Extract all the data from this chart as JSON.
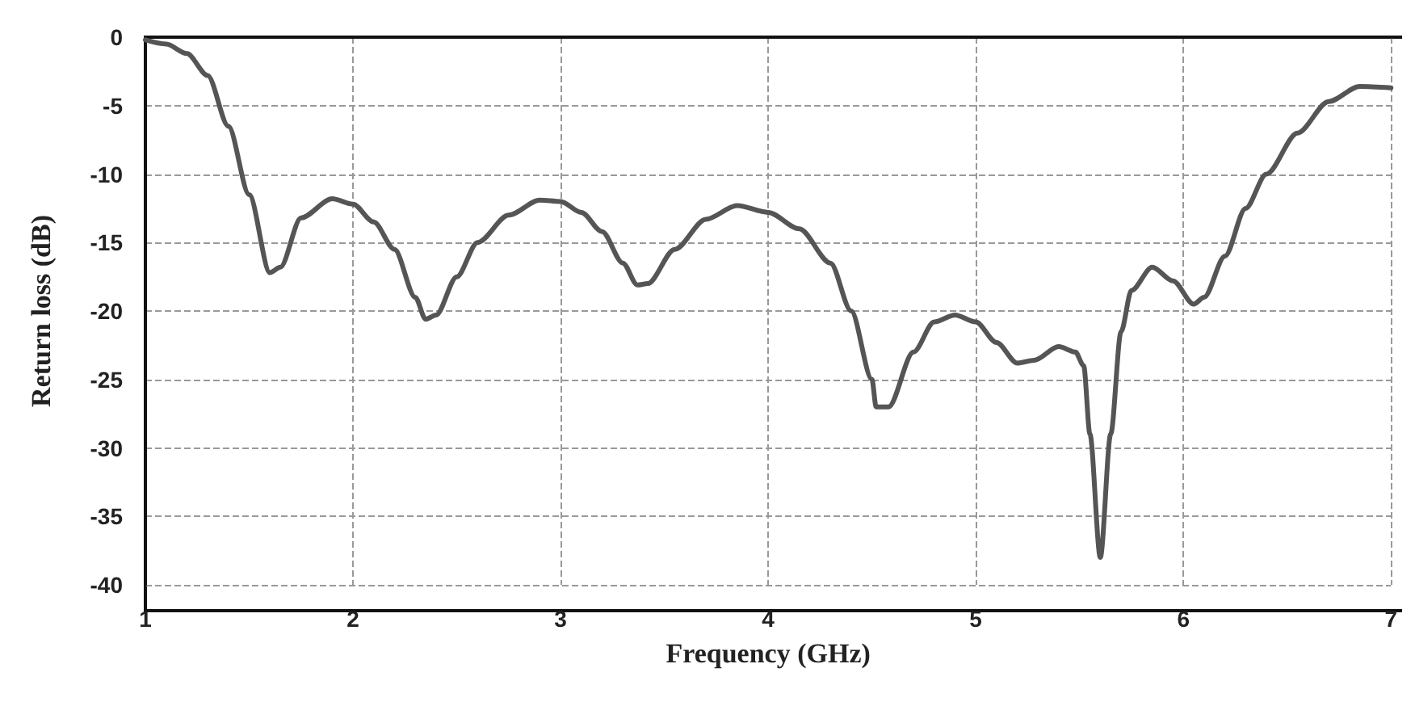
{
  "chart_data": {
    "type": "line",
    "xlabel": "Frequency (GHz)",
    "ylabel": "Return loss (dB)",
    "x": [
      1.0,
      1.1,
      1.2,
      1.3,
      1.4,
      1.5,
      1.6,
      1.65,
      1.75,
      1.9,
      2.0,
      2.1,
      2.2,
      2.3,
      2.35,
      2.4,
      2.5,
      2.6,
      2.75,
      2.9,
      3.0,
      3.1,
      3.2,
      3.3,
      3.37,
      3.42,
      3.55,
      3.7,
      3.85,
      4.0,
      4.15,
      4.3,
      4.4,
      4.5,
      4.52,
      4.58,
      4.7,
      4.8,
      4.9,
      5.0,
      5.1,
      5.2,
      5.28,
      5.4,
      5.48,
      5.52,
      5.55,
      5.6,
      5.65,
      5.7,
      5.75,
      5.85,
      5.95,
      6.05,
      6.1,
      6.2,
      6.3,
      6.4,
      6.55,
      6.7,
      6.85,
      7.0
    ],
    "series": [
      {
        "color": "#555555",
        "values": [
          -0.2,
          -0.5,
          -1.2,
          -2.8,
          -6.5,
          -11.5,
          -17.2,
          -16.8,
          -13.2,
          -11.8,
          -12.2,
          -13.5,
          -15.5,
          -19,
          -20.6,
          -20.3,
          -17.5,
          -15,
          -13,
          -11.9,
          -12,
          -12.8,
          -14.2,
          -16.5,
          -18.1,
          -18,
          -15.5,
          -13.3,
          -12.3,
          -12.8,
          -14,
          -16.5,
          -20,
          -25,
          -27,
          -27,
          -23,
          -20.8,
          -20.3,
          -20.8,
          -22.3,
          -23.8,
          -23.6,
          -22.6,
          -23,
          -24,
          -29,
          -38,
          -29,
          -21.5,
          -18.5,
          -16.8,
          -17.8,
          -19.5,
          -19,
          -16,
          -12.5,
          -10,
          -7,
          -4.7,
          -3.6,
          -3.7
        ]
      }
    ],
    "xlim": [
      1,
      7
    ],
    "xticks": [
      1,
      2,
      3,
      4,
      5,
      6,
      7
    ],
    "ylim": [
      -40,
      0
    ],
    "yticks": [
      -40,
      -35,
      -30,
      -25,
      -20,
      -15,
      -10,
      -5,
      0
    ],
    "grid": true,
    "marker": "none",
    "line_style": "solid"
  }
}
